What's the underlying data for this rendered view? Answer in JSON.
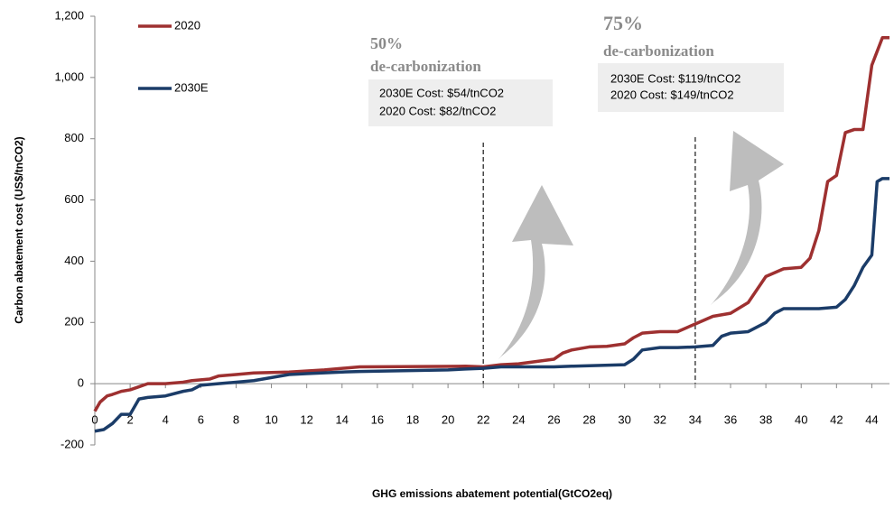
{
  "chart_data": {
    "type": "line",
    "y_label": "Carbon abatement cost (US$/tnCO2)",
    "x_label": "GHG emissions abatement  potential(GtCO2eq)",
    "xlim": [
      0,
      45
    ],
    "ylim": [
      -200,
      1200
    ],
    "xticks": [
      0,
      2,
      4,
      6,
      8,
      10,
      12,
      14,
      16,
      18,
      20,
      22,
      24,
      26,
      28,
      30,
      32,
      34,
      36,
      38,
      40,
      42,
      44
    ],
    "yticks": [
      -200,
      0,
      200,
      400,
      600,
      800,
      {
        "value": 1000,
        "label": "1,000"
      },
      {
        "value": 1200,
        "label": "1,200"
      }
    ],
    "vlines": [
      22,
      34
    ],
    "series": [
      {
        "name": "2020",
        "color": "#9e3030",
        "x": [
          0,
          0.3,
          0.7,
          1,
          1.5,
          2,
          2.5,
          3,
          4,
          5,
          5.5,
          6.5,
          7,
          8,
          9,
          11,
          13,
          15,
          21,
          22,
          23,
          24,
          26,
          26.5,
          27,
          28,
          29,
          30,
          30.5,
          31,
          32,
          33,
          34,
          35,
          36,
          37,
          38,
          39,
          40,
          40.5,
          41,
          41.5,
          42,
          42.5,
          43,
          43.5,
          44,
          44.6,
          45
        ],
        "values": [
          -90,
          -60,
          -40,
          -35,
          -25,
          -20,
          -10,
          0,
          0,
          5,
          10,
          15,
          25,
          30,
          35,
          38,
          45,
          55,
          57,
          55,
          62,
          65,
          80,
          100,
          110,
          120,
          122,
          130,
          150,
          165,
          170,
          170,
          195,
          220,
          230,
          265,
          350,
          375,
          380,
          410,
          500,
          660,
          680,
          820,
          830,
          830,
          1040,
          1130,
          1130
        ]
      },
      {
        "name": "2030E",
        "color": "#1b3c68",
        "x": [
          0,
          0.5,
          1,
          1.5,
          2,
          2.5,
          3,
          4,
          5,
          5.5,
          6,
          7,
          8,
          9,
          10,
          11,
          12,
          14,
          15,
          20,
          21,
          22,
          23,
          26,
          27,
          30,
          30.5,
          31,
          32,
          33,
          34,
          35,
          35.5,
          36,
          37,
          38,
          38.5,
          39,
          40,
          41,
          42,
          42.5,
          43,
          43.5,
          44,
          44.3,
          44.6,
          45
        ],
        "values": [
          -155,
          -150,
          -130,
          -100,
          -100,
          -50,
          -45,
          -40,
          -25,
          -20,
          -5,
          0,
          5,
          10,
          20,
          30,
          33,
          38,
          40,
          45,
          48,
          50,
          55,
          55,
          57,
          62,
          80,
          110,
          118,
          118,
          120,
          125,
          155,
          165,
          170,
          200,
          230,
          245,
          245,
          245,
          250,
          275,
          320,
          380,
          420,
          660,
          670,
          670
        ]
      }
    ],
    "annotations": [
      {
        "pct": "50%",
        "label": "de-carbonization",
        "lines": [
          "2030E Cost: $54/tnCO2",
          "2020 Cost: $82/tnCO2"
        ]
      },
      {
        "pct": "75%",
        "label": "de-carbonization",
        "lines": [
          "2030E Cost: $119/tnCO2",
          "2020 Cost: $149/tnCO2"
        ]
      }
    ]
  }
}
